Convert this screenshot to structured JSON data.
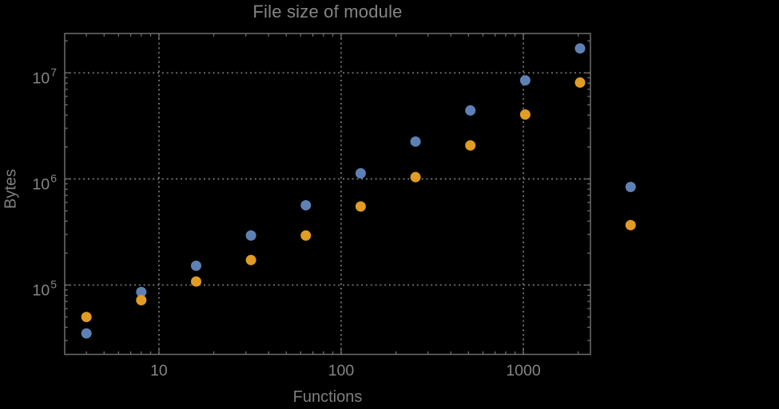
{
  "chart_data": {
    "type": "scatter",
    "title": "File size of module",
    "xlabel": "Functions",
    "ylabel": "Bytes",
    "x_scale": "log",
    "y_scale": "log",
    "xlim": [
      3.04,
      2335
    ],
    "ylim": [
      22200,
      23500000
    ],
    "grid": true,
    "grid_style": "dotted",
    "legend": "none",
    "x_ticks": {
      "values": [
        10,
        100,
        1000
      ],
      "labels": [
        "10",
        "100",
        "1000"
      ]
    },
    "y_ticks": {
      "values": [
        100000,
        1000000,
        10000000
      ],
      "labels": [
        {
          "mantissa": "10",
          "exponent": "5"
        },
        {
          "mantissa": "10",
          "exponent": "6"
        },
        {
          "mantissa": "10",
          "exponent": "7"
        }
      ]
    },
    "series": [
      {
        "name": "blue",
        "color": "#5e81b5",
        "x": [
          4,
          8,
          16,
          32,
          64,
          128,
          256,
          512,
          1024,
          2048,
          3880
        ],
        "y": [
          35000,
          86000,
          152000,
          293000,
          565000,
          1130000,
          2250000,
          4420000,
          8500000,
          17000000,
          840000
        ]
      },
      {
        "name": "orange",
        "color": "#e19c24",
        "x": [
          4,
          8,
          16,
          32,
          64,
          128,
          256,
          512,
          1024,
          2048,
          3880
        ],
        "y": [
          50000,
          72000,
          108000,
          172000,
          293000,
          550000,
          1040000,
          2070000,
          4050000,
          8100000,
          367000
        ]
      }
    ]
  },
  "colors": {
    "background": "#000000",
    "frame": "#6e6e6e",
    "grid": "#757575",
    "tick": "#6e6e6e",
    "text": "#858585"
  }
}
